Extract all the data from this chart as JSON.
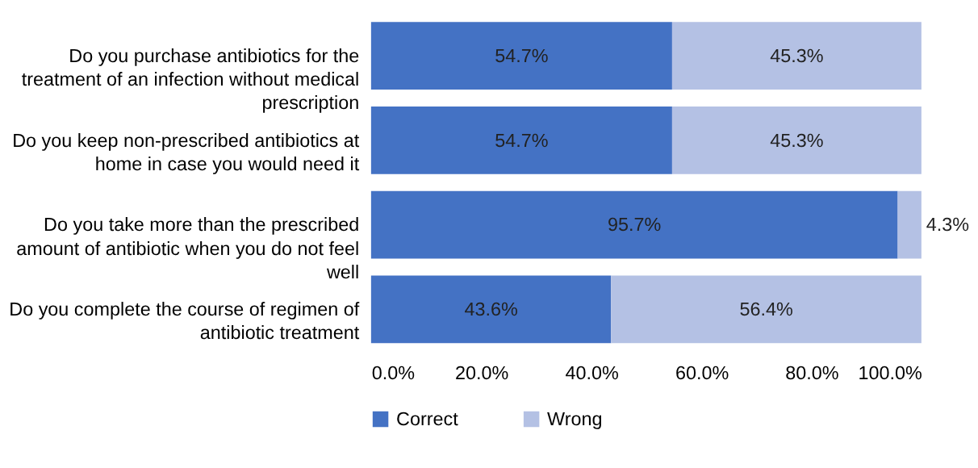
{
  "chart_data": {
    "type": "bar",
    "orientation": "horizontal",
    "stacked": true,
    "categories": [
      "Do you purchase antibiotics for the treatment of an infection without medical prescription",
      "Do you keep non-prescribed antibiotics at home in case you would need it",
      "Do you take more than the prescribed amount of antibiotic when you do not feel well",
      "Do you complete the course of regimen of antibiotic treatment"
    ],
    "series": [
      {
        "name": "Correct",
        "color": "#4472c4",
        "values": [
          54.7,
          54.7,
          95.7,
          43.6
        ],
        "value_labels": [
          "54.7%",
          "54.7%",
          "95.7%",
          "43.6%"
        ]
      },
      {
        "name": "Wrong",
        "color": "#b4c1e4",
        "values": [
          45.3,
          45.3,
          4.3,
          56.4
        ],
        "value_labels": [
          "45.3%",
          "45.3%",
          "4.3%",
          "56.4%"
        ]
      }
    ],
    "xlim": [
      0,
      100
    ],
    "xticks": [
      {
        "value": 0,
        "label": "0.0%"
      },
      {
        "value": 20,
        "label": "20.0%"
      },
      {
        "value": 40,
        "label": "40.0%"
      },
      {
        "value": 60,
        "label": "60.0%"
      },
      {
        "value": 80,
        "label": "80.0%"
      },
      {
        "value": 100,
        "label": "100.0%"
      }
    ],
    "grid": false,
    "legend": "bottom"
  }
}
